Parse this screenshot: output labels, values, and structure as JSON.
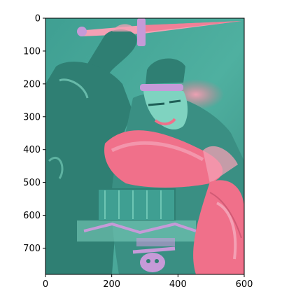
{
  "chart_data": {
    "type": "image",
    "title": "",
    "xlabel": "",
    "ylabel": "",
    "xlim": [
      0,
      600
    ],
    "ylim": [
      780,
      0
    ],
    "x_ticks": [
      0,
      200,
      400,
      600
    ],
    "y_ticks": [
      0,
      100,
      200,
      300,
      400,
      500,
      600,
      700
    ],
    "x_tick_labels": [
      "0",
      "200",
      "400",
      "600"
    ],
    "y_tick_labels": [
      "0",
      "100",
      "200",
      "300",
      "400",
      "500",
      "600",
      "700"
    ],
    "grid": false,
    "image_content": "stylized painting of an armored warrior with raised sword, rendered in a teal and pink false-color palette",
    "colors": {
      "teal_base": "#4fb0a0",
      "teal_dark": "#2f7f73",
      "teal_light": "#7fd3c0",
      "pink": "#f0708a",
      "pink_light": "#f4a0b4",
      "lavender": "#c69ad8",
      "axis": "#000000"
    }
  }
}
